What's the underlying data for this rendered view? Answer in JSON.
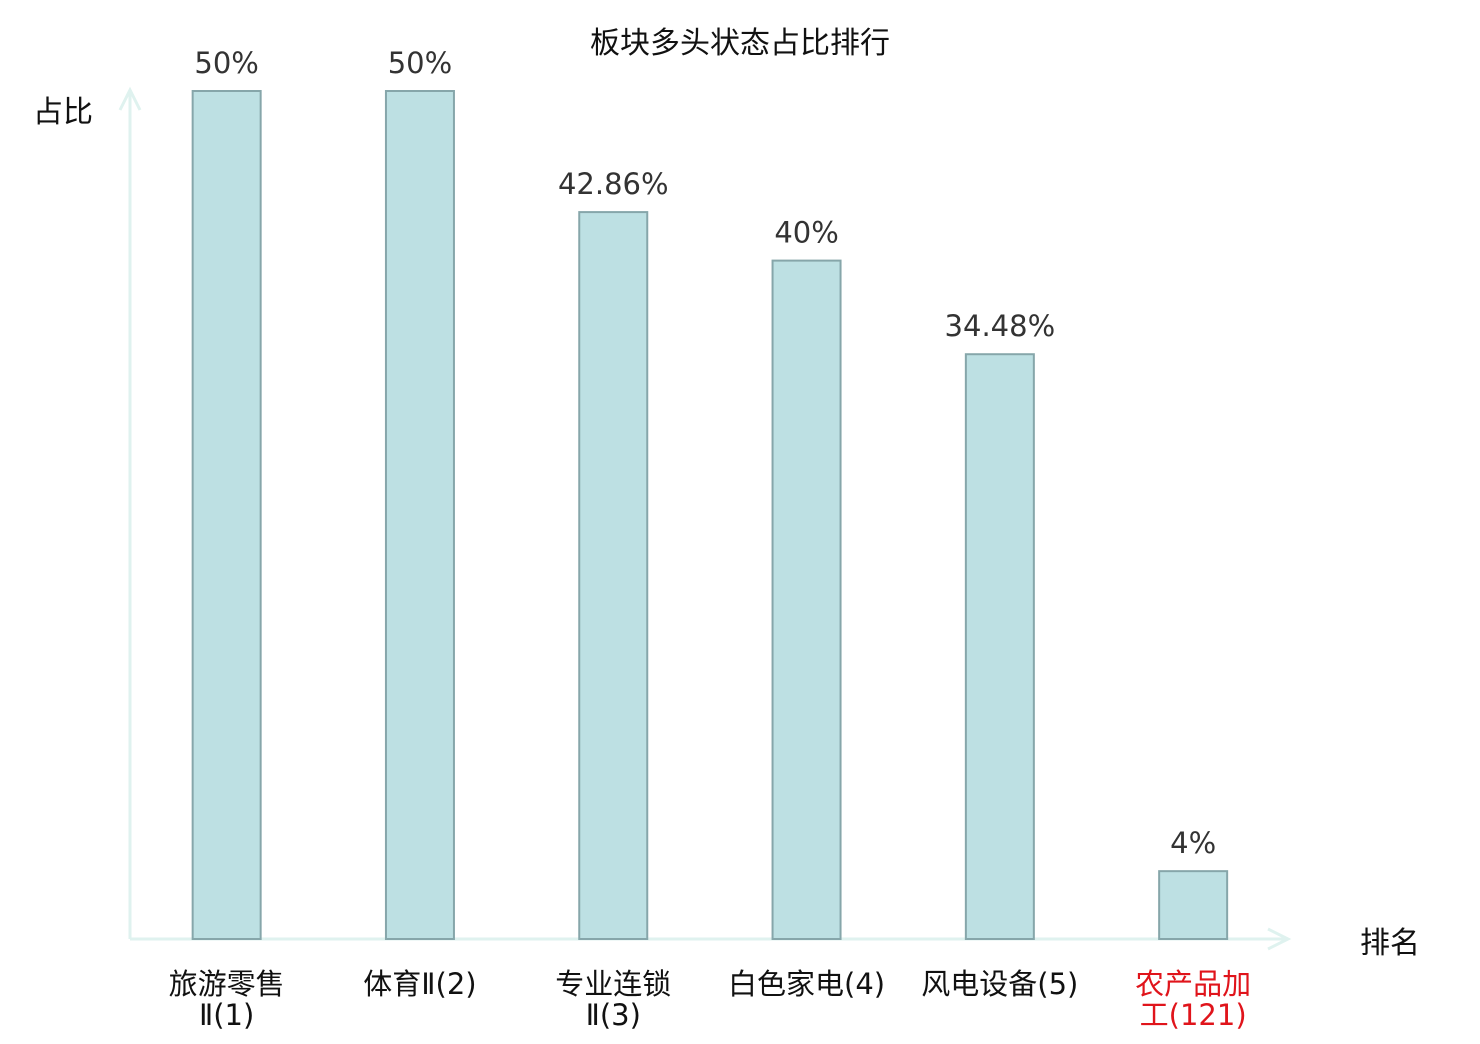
{
  "chart_data": {
    "type": "bar",
    "title": "板块多头状态占比排行",
    "xlabel": "排名",
    "ylabel": "占比",
    "categories": [
      [
        "旅游零售",
        "Ⅱ(1)"
      ],
      [
        "体育Ⅱ(2)"
      ],
      [
        "专业连锁",
        "Ⅱ(3)"
      ],
      [
        "白色家电(4)"
      ],
      [
        "风电设备(5)"
      ],
      [
        "农产品加",
        "工(121)"
      ]
    ],
    "values": [
      50,
      50,
      42.86,
      40,
      34.48,
      4
    ],
    "value_labels": [
      "50%",
      "50%",
      "42.86%",
      "40%",
      "34.48%",
      "4%"
    ],
    "highlight_category_index": 5,
    "ylim": [
      0,
      50
    ],
    "grid": false,
    "legend": "none",
    "colors": {
      "bar_fill": "#bde0e3",
      "bar_stroke": "#86a6aa",
      "axis": "#dff2ef",
      "text": "#333333",
      "title": "#111111",
      "highlight": "#e0141b"
    }
  }
}
